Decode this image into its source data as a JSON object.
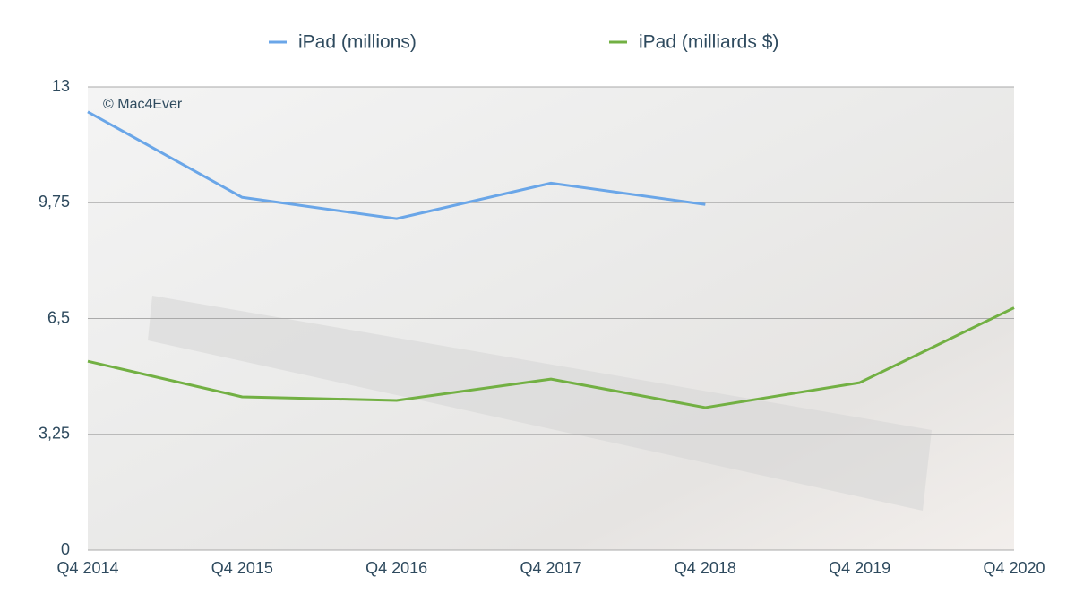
{
  "chart_data": {
    "type": "line",
    "watermark": "© Mac4Ever",
    "categories": [
      "Q4 2014",
      "Q4 2015",
      "Q4 2016",
      "Q4 2017",
      "Q4 2018",
      "Q4 2019",
      "Q4 2020"
    ],
    "series": [
      {
        "name": "iPad (millions)",
        "color": "#6aa6e8",
        "values": [
          12.3,
          9.9,
          9.3,
          10.3,
          9.7,
          null,
          null
        ]
      },
      {
        "name": "iPad (milliards $)",
        "color": "#72b043",
        "values": [
          5.3,
          4.3,
          4.2,
          4.8,
          4.0,
          4.7,
          6.8
        ]
      }
    ],
    "ylim": [
      0,
      13
    ],
    "yticks": [
      0,
      {
        "value": 3.25,
        "label": "3,25"
      },
      {
        "value": 6.5,
        "label": "6,5"
      },
      {
        "value": 9.75,
        "label": "9,75"
      },
      13
    ],
    "grid": true,
    "legend": "top"
  }
}
